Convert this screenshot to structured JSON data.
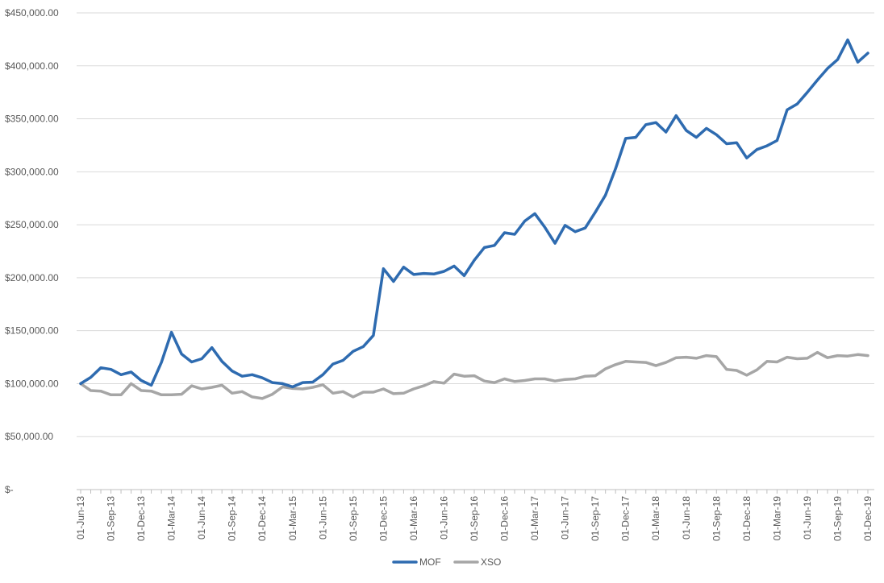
{
  "colors": {
    "mof": "#2e6bb0",
    "xso": "#a6a6a6",
    "grid": "#d9d9d9",
    "axis": "#bfbfbf",
    "text": "#595959"
  },
  "chart_data": {
    "type": "line",
    "title": "",
    "xlabel": "",
    "ylabel": "",
    "ylim": [
      0,
      450000
    ],
    "y_ticks": [
      0,
      50000,
      100000,
      150000,
      200000,
      250000,
      300000,
      350000,
      400000,
      450000
    ],
    "y_tick_labels": [
      "$-",
      "$50,000.00",
      "$100,000.00",
      "$150,000.00",
      "$200,000.00",
      "$250,000.00",
      "$300,000.00",
      "$350,000.00",
      "$400,000.00",
      "$450,000.00"
    ],
    "x_tick_labels": [
      "01-Jun-13",
      "01-Sep-13",
      "01-Dec-13",
      "01-Mar-14",
      "01-Jun-14",
      "01-Sep-14",
      "01-Dec-14",
      "01-Mar-15",
      "01-Jun-15",
      "01-Sep-15",
      "01-Dec-15",
      "01-Mar-16",
      "01-Jun-16",
      "01-Sep-16",
      "01-Dec-16",
      "01-Mar-17",
      "01-Jun-17",
      "01-Sep-17",
      "01-Dec-17",
      "01-Mar-18",
      "01-Jun-18",
      "01-Sep-18",
      "01-Dec-18",
      "01-Mar-19",
      "01-Jun-19",
      "01-Sep-19",
      "01-Dec-19"
    ],
    "x_start": "2013-06",
    "x_end": "2019-12",
    "grid": "horizontal",
    "legend_position": "bottom",
    "series": [
      {
        "name": "MOF",
        "values": [
          100000,
          106000,
          115000,
          113500,
          108500,
          111000,
          103000,
          98500,
          120000,
          148500,
          128000,
          120500,
          123500,
          134000,
          121000,
          112000,
          107000,
          108500,
          105500,
          101000,
          100000,
          97000,
          101000,
          101500,
          108500,
          118500,
          122000,
          130500,
          135000,
          145500,
          208500,
          196500,
          210000,
          203000,
          204000,
          203500,
          206000,
          211000,
          202000,
          216500,
          228500,
          230500,
          242500,
          241000,
          253500,
          260500,
          247500,
          232500,
          249500,
          243500,
          247000,
          262000,
          278000,
          303000,
          331500,
          332500,
          344500,
          346500,
          337500,
          353000,
          339000,
          332500,
          341000,
          335000,
          326500,
          327500,
          313000,
          321000,
          324500,
          329500,
          358500,
          364000,
          375000,
          386500,
          397500,
          406000,
          424500,
          403500,
          412000
        ]
      },
      {
        "name": "XSO",
        "values": [
          100000,
          93500,
          93000,
          89500,
          89500,
          100000,
          93500,
          93000,
          89500,
          89500,
          90000,
          98000,
          95000,
          96500,
          98500,
          91000,
          92500,
          87500,
          86000,
          90000,
          97000,
          95500,
          95000,
          96500,
          99000,
          91000,
          92500,
          87500,
          92000,
          92000,
          95000,
          90500,
          91000,
          95000,
          98000,
          102000,
          100500,
          109000,
          107000,
          107500,
          102500,
          101000,
          104500,
          102000,
          103000,
          104500,
          104500,
          102500,
          104000,
          104500,
          107000,
          107500,
          114000,
          118000,
          121000,
          120500,
          120000,
          117000,
          120000,
          124500,
          125000,
          124000,
          126500,
          125500,
          113500,
          112500,
          108000,
          113000,
          121000,
          120500,
          125000,
          123500,
          124000,
          129500,
          124500,
          126500,
          126000,
          127500,
          126500
        ]
      }
    ]
  }
}
